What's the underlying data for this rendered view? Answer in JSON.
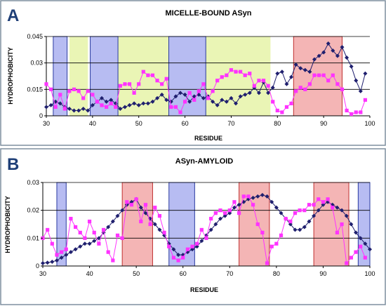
{
  "colors": {
    "frame": "#7f8f9f",
    "blue_region": "#aab0f0",
    "blue_region_stroke": "#2a3aa0",
    "yellow_region": "#eaf5b5",
    "red_region": "#f2a8a8",
    "red_region_stroke": "#c03030",
    "navy_series": "#1f1f6e",
    "magenta_series": "#ff33ff"
  },
  "chart_data": [
    {
      "id": "A",
      "panel_label": "A",
      "type": "line",
      "title": "MICELLE-BOUND ASyn",
      "xlabel": "RESIDUE",
      "ylabel": "HYDROPHOBICITY",
      "xlim": [
        30,
        100
      ],
      "ylim": [
        0,
        0.045
      ],
      "xticks": [
        30,
        40,
        50,
        60,
        70,
        80,
        90,
        100
      ],
      "yticks": [
        0,
        0.015,
        0.03,
        0.045
      ],
      "ytick_labels": [
        "0",
        "0.015",
        "0.03",
        "0.045"
      ],
      "grid": "horizontal",
      "regions": [
        {
          "color": "yellow",
          "x0": 35,
          "x1": 39
        },
        {
          "color": "yellow",
          "x0": 45.5,
          "x1": 56.5
        },
        {
          "color": "yellow",
          "x0": 64.5,
          "x1": 78.5
        },
        {
          "color": "blue",
          "x0": 31.5,
          "x1": 34.5
        },
        {
          "color": "blue",
          "x0": 39.5,
          "x1": 45.5
        },
        {
          "color": "blue",
          "x0": 56.5,
          "x1": 64.5
        },
        {
          "color": "red",
          "x0": 83.5,
          "x1": 94
        }
      ],
      "series": [
        {
          "color": "navy",
          "marker": "diamond",
          "x": [
            30,
            31,
            32,
            33,
            34,
            35,
            36,
            37,
            38,
            39,
            40,
            41,
            42,
            43,
            44,
            45,
            46,
            47,
            48,
            49,
            50,
            51,
            52,
            53,
            54,
            55,
            56,
            57,
            58,
            59,
            60,
            61,
            62,
            63,
            64,
            65,
            66,
            67,
            68,
            69,
            70,
            71,
            72,
            73,
            74,
            75,
            76,
            77,
            78,
            79,
            80,
            81,
            82,
            83,
            84,
            85,
            86,
            87,
            88,
            89,
            90,
            91,
            92,
            93,
            94,
            95,
            96,
            97,
            98,
            99
          ],
          "y": [
            0.005,
            0.006,
            0.008,
            0.007,
            0.005,
            0.004,
            0.003,
            0.003,
            0.004,
            0.003,
            0.006,
            0.008,
            0.01,
            0.008,
            0.009,
            0.007,
            0.004,
            0.005,
            0.006,
            0.007,
            0.006,
            0.007,
            0.007,
            0.008,
            0.01,
            0.012,
            0.009,
            0.008,
            0.011,
            0.013,
            0.012,
            0.008,
            0.011,
            0.012,
            0.01,
            0.011,
            0.008,
            0.006,
            0.009,
            0.008,
            0.01,
            0.007,
            0.011,
            0.012,
            0.013,
            0.016,
            0.013,
            0.019,
            0.013,
            0.016,
            0.024,
            0.025,
            0.018,
            0.022,
            0.029,
            0.027,
            0.026,
            0.025,
            0.032,
            0.034,
            0.036,
            0.041,
            0.037,
            0.034,
            0.039,
            0.033,
            0.028,
            0.02,
            0.014,
            0.024
          ]
        },
        {
          "color": "magenta",
          "marker": "square",
          "x": [
            30,
            31,
            32,
            33,
            34,
            35,
            36,
            37,
            38,
            39,
            40,
            41,
            42,
            43,
            44,
            45,
            46,
            47,
            48,
            49,
            50,
            51,
            52,
            53,
            54,
            55,
            56,
            57,
            58,
            59,
            60,
            61,
            62,
            63,
            64,
            65,
            66,
            67,
            68,
            69,
            70,
            71,
            72,
            73,
            74,
            75,
            76,
            77,
            78,
            79,
            80,
            81,
            82,
            83,
            84,
            85,
            86,
            87,
            88,
            89,
            90,
            91,
            92,
            93,
            94,
            95,
            96,
            97,
            98,
            99
          ],
          "y": [
            0.018,
            0.015,
            0.005,
            0.012,
            0.004,
            0.014,
            0.015,
            0.014,
            0.01,
            0.014,
            0.012,
            0.008,
            0.006,
            0.005,
            0.007,
            0.005,
            0.017,
            0.018,
            0.018,
            0.013,
            0.018,
            0.025,
            0.023,
            0.023,
            0.02,
            0.018,
            0.021,
            0.005,
            0.005,
            0.002,
            0.008,
            0.013,
            0.009,
            0.014,
            0.018,
            0.01,
            0.014,
            0.02,
            0.022,
            0.023,
            0.026,
            0.025,
            0.025,
            0.023,
            0.024,
            0.017,
            0.02,
            0.02,
            0.017,
            0.008,
            0.003,
            0.002,
            0.005,
            0.007,
            0.014,
            0.016,
            0.015,
            0.018,
            0.023,
            0.023,
            0.023,
            0.02,
            0.023,
            0.018,
            0.015,
            0.003,
            0.001,
            0.002,
            0.002,
            0.009
          ]
        }
      ]
    },
    {
      "id": "B",
      "panel_label": "B",
      "type": "line",
      "title": "ASyn-AMYLOID",
      "xlabel": "RESIDUE",
      "ylabel": "HYDROPHOBICITY",
      "xlim": [
        30,
        100
      ],
      "ylim": [
        0,
        0.03
      ],
      "xticks": [
        30,
        40,
        50,
        60,
        70,
        80,
        90,
        100
      ],
      "yticks": [
        0,
        0.01,
        0.02,
        0.03
      ],
      "ytick_labels": [
        "0",
        "0.01",
        "0.02",
        "0.03"
      ],
      "grid": "horizontal",
      "regions": [
        {
          "color": "blue",
          "x0": 33,
          "x1": 35
        },
        {
          "color": "red",
          "x0": 47,
          "x1": 53.5
        },
        {
          "color": "blue",
          "x0": 57,
          "x1": 62.5
        },
        {
          "color": "red",
          "x0": 72,
          "x1": 78.5
        },
        {
          "color": "red",
          "x0": 88,
          "x1": 95.5
        },
        {
          "color": "blue",
          "x0": 97.5,
          "x1": 100
        }
      ],
      "series": [
        {
          "color": "navy",
          "marker": "diamond",
          "x": [
            30,
            31,
            32,
            33,
            34,
            35,
            36,
            37,
            38,
            39,
            40,
            41,
            42,
            43,
            44,
            45,
            46,
            47,
            48,
            49,
            50,
            51,
            52,
            53,
            54,
            55,
            56,
            57,
            58,
            59,
            60,
            61,
            62,
            63,
            64,
            65,
            66,
            67,
            68,
            69,
            70,
            71,
            72,
            73,
            74,
            75,
            76,
            77,
            78,
            79,
            80,
            81,
            82,
            83,
            84,
            85,
            86,
            87,
            88,
            89,
            90,
            91,
            92,
            93,
            94,
            95,
            96,
            97,
            98,
            99,
            100
          ],
          "y": [
            0.001,
            0.0012,
            0.0015,
            0.002,
            0.003,
            0.004,
            0.005,
            0.006,
            0.007,
            0.008,
            0.008,
            0.009,
            0.01,
            0.012,
            0.014,
            0.016,
            0.018,
            0.02,
            0.022,
            0.023,
            0.024,
            0.021,
            0.019,
            0.017,
            0.015,
            0.013,
            0.011,
            0.008,
            0.006,
            0.004,
            0.004,
            0.005,
            0.006,
            0.007,
            0.009,
            0.011,
            0.013,
            0.015,
            0.017,
            0.018,
            0.019,
            0.021,
            0.022,
            0.023,
            0.024,
            0.0245,
            0.025,
            0.0255,
            0.025,
            0.023,
            0.021,
            0.019,
            0.017,
            0.015,
            0.013,
            0.013,
            0.014,
            0.016,
            0.018,
            0.02,
            0.022,
            0.023,
            0.022,
            0.021,
            0.02,
            0.018,
            0.015,
            0.012,
            0.01,
            0.008,
            0.006
          ]
        },
        {
          "color": "magenta",
          "marker": "square",
          "x": [
            30,
            31,
            32,
            33,
            34,
            35,
            36,
            37,
            38,
            39,
            40,
            41,
            42,
            43,
            44,
            45,
            46,
            47,
            48,
            49,
            50,
            51,
            52,
            53,
            54,
            55,
            56,
            57,
            58,
            59,
            60,
            61,
            62,
            63,
            64,
            65,
            66,
            67,
            68,
            69,
            70,
            71,
            72,
            73,
            74,
            75,
            76,
            77,
            78,
            79,
            80,
            81,
            82,
            83,
            84,
            85,
            86,
            87,
            88,
            89,
            90,
            91,
            92,
            93,
            94,
            95,
            96,
            97,
            98,
            99
          ],
          "y": [
            0.01,
            0.013,
            0.008,
            0.004,
            0.005,
            0.006,
            0.017,
            0.014,
            0.012,
            0.01,
            0.016,
            0.012,
            0.008,
            0.013,
            0.005,
            0.002,
            0.011,
            0.01,
            0.023,
            0.022,
            0.024,
            0.016,
            0.022,
            0.015,
            0.021,
            0.018,
            0.012,
            0.007,
            0.003,
            0.002,
            0.003,
            0.006,
            0.007,
            0.008,
            0.013,
            0.01,
            0.017,
            0.019,
            0.02,
            0.019,
            0.02,
            0.023,
            0.019,
            0.025,
            0.025,
            0.022,
            0.015,
            0.012,
            0.001,
            0.007,
            0.008,
            0.011,
            0.017,
            0.016,
            0.019,
            0.02,
            0.02,
            0.022,
            0.022,
            0.024,
            0.023,
            0.024,
            0.021,
            0.012,
            0.015,
            0.001,
            0.003,
            0.005,
            0.007,
            0.003
          ]
        }
      ]
    }
  ]
}
